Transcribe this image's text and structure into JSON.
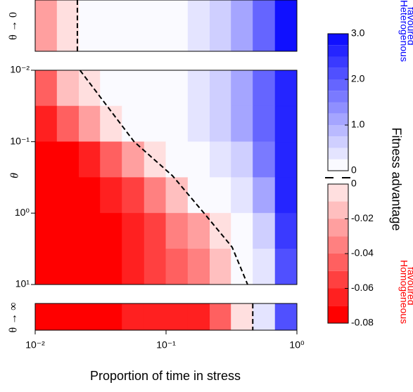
{
  "chart_data": {
    "type": "heatmap",
    "xlabel": "Proportion of time in stress",
    "ylabel": "θ",
    "log_x": true,
    "log_y": true,
    "y_inverted": true,
    "xlim": [
      0.01,
      1
    ],
    "xticks": [
      {
        "value": 0.01,
        "label": "10⁻²"
      },
      {
        "value": 0.1,
        "label": "10⁻¹"
      },
      {
        "value": 1,
        "label": "10⁰"
      }
    ],
    "ylim": [
      0.01,
      10
    ],
    "yticks": [
      {
        "value": 0.01,
        "label": "10⁻²"
      },
      {
        "value": 0.1,
        "label": "10⁻¹"
      },
      {
        "value": 1,
        "label": "10⁰"
      },
      {
        "value": 10,
        "label": "10¹"
      }
    ],
    "x": [
      0.012,
      0.018,
      0.026,
      0.038,
      0.056,
      0.083,
      0.12,
      0.18,
      0.26,
      0.38,
      0.56,
      0.83
    ],
    "y": [
      0.018,
      0.056,
      0.18,
      0.56,
      1.8,
      5.6
    ],
    "values": [
      [
        -0.05,
        -0.02,
        -0.005,
        0.05,
        0.1,
        0.15,
        0.2,
        0.35,
        0.7,
        1.2,
        1.9,
        2.7
      ],
      [
        -0.07,
        -0.05,
        -0.03,
        -0.005,
        0.05,
        0.1,
        0.15,
        0.3,
        0.6,
        1.1,
        1.8,
        2.7
      ],
      [
        -0.08,
        -0.08,
        -0.07,
        -0.05,
        -0.03,
        -0.01,
        0.05,
        0.15,
        0.3,
        0.7,
        1.5,
        2.6
      ],
      [
        -0.08,
        -0.08,
        -0.08,
        -0.07,
        -0.06,
        -0.04,
        -0.02,
        0.02,
        0.1,
        0.3,
        1.0,
        2.5
      ],
      [
        -0.08,
        -0.08,
        -0.08,
        -0.08,
        -0.07,
        -0.06,
        -0.04,
        -0.03,
        -0.005,
        0.1,
        0.6,
        2.3
      ],
      [
        -0.08,
        -0.08,
        -0.08,
        -0.08,
        -0.07,
        -0.06,
        -0.05,
        -0.04,
        -0.02,
        0.02,
        0.4,
        2.2
      ]
    ],
    "zero_contour": {
      "x": [
        0.022,
        0.057,
        0.112,
        0.195,
        0.32,
        0.42
      ],
      "y": [
        0.01,
        0.1,
        0.3,
        1,
        3,
        10
      ]
    },
    "strips": [
      {
        "label": "θ → 0",
        "values": [
          -0.03,
          -0.01,
          0.05,
          0.1,
          0.12,
          0.15,
          0.2,
          0.4,
          0.7,
          1.2,
          1.9,
          2.8
        ],
        "zero_x": 0.021
      },
      {
        "label": "θ → ∞",
        "values": [
          -0.08,
          -0.08,
          -0.08,
          -0.08,
          -0.07,
          -0.07,
          -0.07,
          -0.07,
          -0.05,
          -0.01,
          0.3,
          2.0
        ],
        "zero_x": 0.46
      }
    ],
    "colorbar": {
      "label": "Fitness advantage",
      "high_label": [
        "Heterogenous",
        "favoured"
      ],
      "low_label": [
        "Homogeneous",
        "favoured"
      ],
      "color_high": "#0000ff",
      "color_mid": "#ffffff",
      "color_low": "#ff0000",
      "levels_positive": [
        0,
        0.25,
        0.5,
        0.75,
        1,
        1.25,
        1.5,
        1.75,
        2,
        2.25,
        2.5,
        2.75,
        3
      ],
      "levels_negative": [
        -0.08,
        -0.07,
        -0.06,
        -0.05,
        -0.04,
        -0.03,
        -0.02,
        -0.01,
        0
      ],
      "ticks_positive": [
        0,
        {
          "value": 1,
          "label": "1.0"
        },
        {
          "value": 2,
          "label": "2.0"
        },
        {
          "value": 3,
          "label": "3.0"
        }
      ],
      "ticks_negative": [
        0,
        -0.02,
        -0.04,
        -0.06,
        -0.08
      ]
    }
  }
}
